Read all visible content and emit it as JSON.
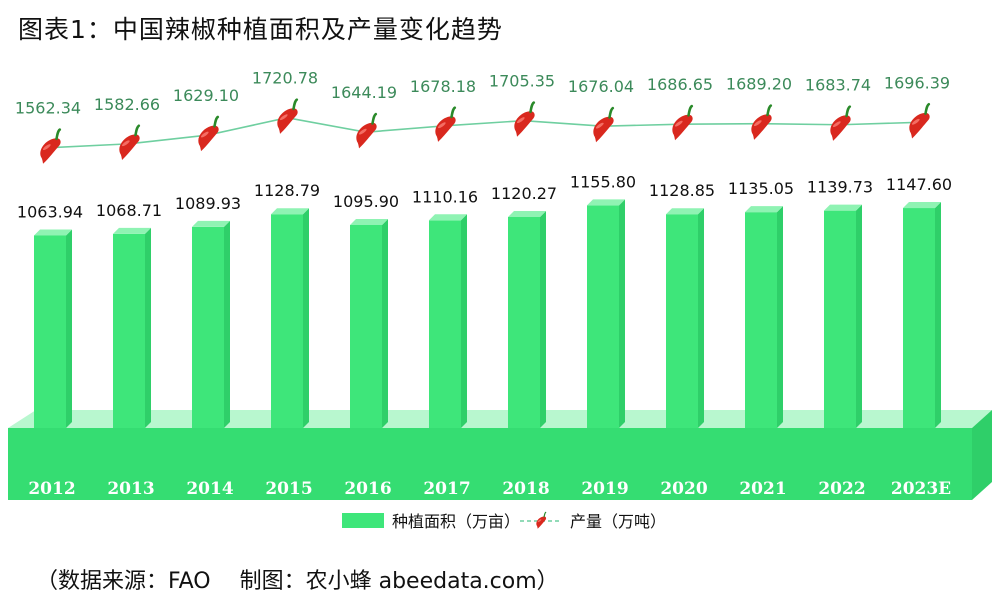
{
  "title": "图表1：中国辣椒种植面积及产量变化趋势",
  "source": "（数据来源：FAO　 制图：农小蜂 abeedata.com）",
  "colors": {
    "bar_front": "#3ee67a",
    "bar_side": "#2fcf69",
    "bar_top": "#8ff3b3",
    "base_front": "#35dd72",
    "base_top": "#b8f7cf",
    "line": "#6fcfa0",
    "production_label": "#3c8a5a",
    "area_label": "#111111",
    "chili_red": "#d9281e",
    "chili_stem": "#2a8a2a"
  },
  "chart_data": [
    {
      "type": "bar",
      "categories": [
        "2012",
        "2013",
        "2014",
        "2015",
        "2016",
        "2017",
        "2018",
        "2019",
        "2020",
        "2021",
        "2022",
        "2023E"
      ],
      "series": [
        {
          "name": "种植面积（万亩）",
          "values": [
            1063.94,
            1068.71,
            1089.93,
            1128.79,
            1095.9,
            1110.16,
            1120.27,
            1155.8,
            1128.85,
            1135.05,
            1139.73,
            1147.6
          ]
        }
      ],
      "legend_position": "bottom",
      "grid": false
    },
    {
      "type": "line",
      "categories": [
        "2012",
        "2013",
        "2014",
        "2015",
        "2016",
        "2017",
        "2018",
        "2019",
        "2020",
        "2021",
        "2022",
        "2023E"
      ],
      "series": [
        {
          "name": "产量（万吨）",
          "values": [
            1562.34,
            1582.66,
            1629.1,
            1720.78,
            1644.19,
            1678.18,
            1705.35,
            1676.04,
            1686.65,
            1689.2,
            1683.74,
            1696.39
          ]
        }
      ],
      "marker": "chili-pepper-icon",
      "legend_position": "bottom",
      "grid": false
    }
  ]
}
